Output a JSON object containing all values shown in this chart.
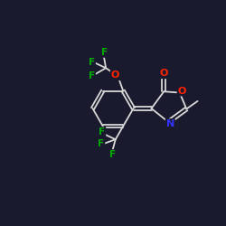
{
  "background_color": "#1a1a2e",
  "bond_color": "#d8d8d8",
  "atom_colors": {
    "O": "#ff2200",
    "N": "#3333ff",
    "F": "#00aa00",
    "C": "#d8d8d8"
  },
  "figsize": [
    2.5,
    2.5
  ],
  "dpi": 100
}
